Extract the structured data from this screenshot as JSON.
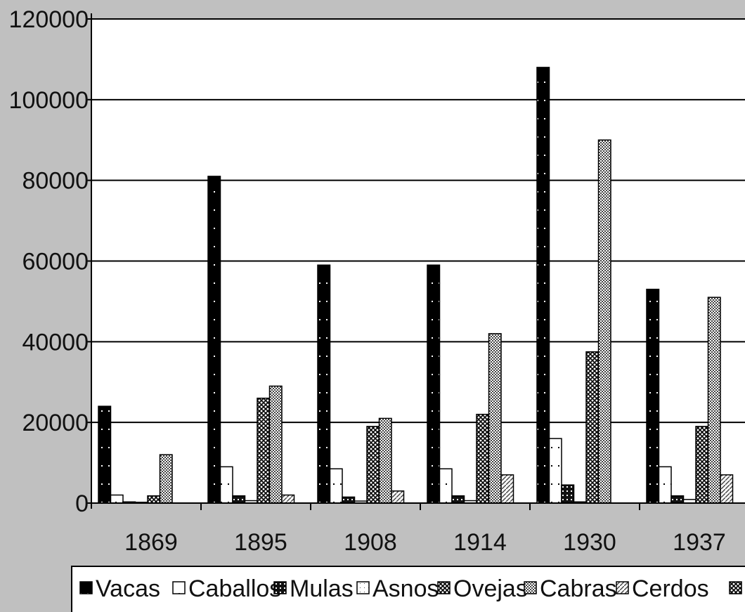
{
  "chart_data": {
    "type": "bar",
    "title": "",
    "xlabel": "",
    "ylabel": "",
    "categories": [
      "1869",
      "1895",
      "1908",
      "1914",
      "1930",
      "1937"
    ],
    "ylim": [
      0,
      120000
    ],
    "yticks": [
      0,
      20000,
      40000,
      60000,
      80000,
      100000,
      120000
    ],
    "ytick_labels": [
      "0",
      "20000",
      "40000",
      "60000",
      "80000",
      "100000",
      "120000"
    ],
    "grid": true,
    "legend_position": "bottom",
    "series": [
      {
        "name": "Vacas",
        "color": "#000000",
        "values": [
          24000,
          81000,
          59000,
          59000,
          108000,
          53000
        ]
      },
      {
        "name": "Caballos",
        "color": "#ffffff",
        "values": [
          2000,
          9000,
          8500,
          8500,
          16000,
          9000
        ]
      },
      {
        "name": "Mulas",
        "color": "#111111",
        "values": [
          300,
          1800,
          1500,
          1800,
          4500,
          1800
        ]
      },
      {
        "name": "Asnos",
        "color": "#ffffff",
        "values": [
          200,
          600,
          500,
          600,
          300,
          900
        ]
      },
      {
        "name": "Ovejas",
        "color": "#444444",
        "values": [
          1800,
          26000,
          19000,
          22000,
          37500,
          19000
        ]
      },
      {
        "name": "Cabras",
        "color": "#999999",
        "values": [
          12000,
          29000,
          21000,
          42000,
          90000,
          51000
        ]
      },
      {
        "name": "Cerdos",
        "color": "#dddddd",
        "values": [
          0,
          2000,
          3000,
          7000,
          0,
          7000
        ]
      }
    ]
  }
}
